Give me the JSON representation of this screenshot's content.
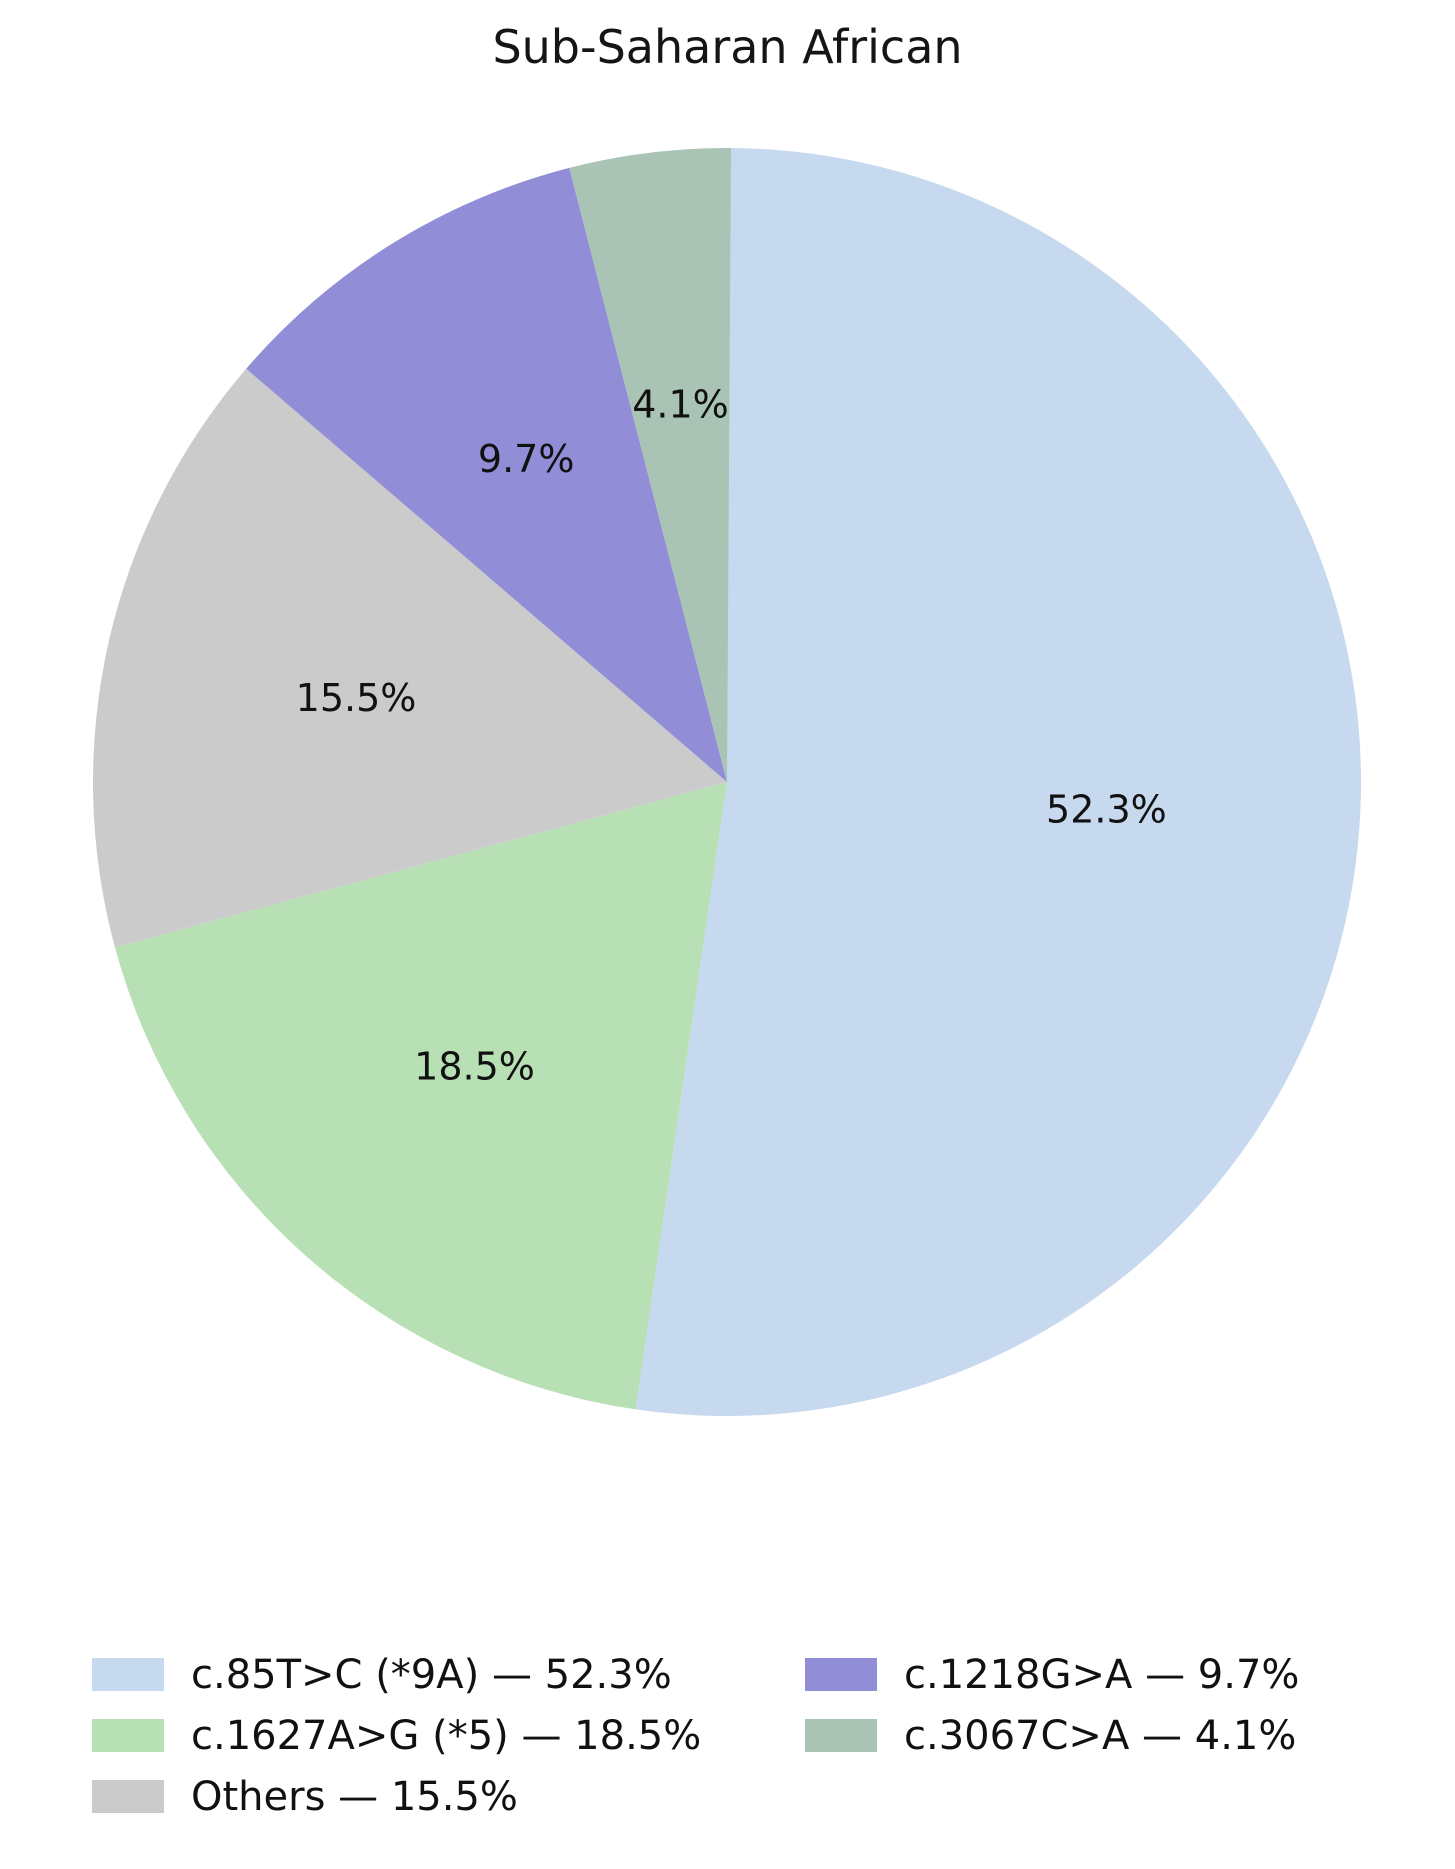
{
  "chart_data": {
    "type": "pie",
    "title": "Sub-Saharan African",
    "start_angle_deg": 90,
    "direction": "clockwise",
    "legend_position": "bottom",
    "slices": [
      {
        "label": "c.85T>C (*9A)",
        "value": 52.3,
        "pct_label": "52.3%",
        "color": "#c6d9ef"
      },
      {
        "label": "c.1627A>G (*5)",
        "value": 18.5,
        "pct_label": "18.5%",
        "color": "#b8e0b5"
      },
      {
        "label": "Others",
        "value": 15.5,
        "pct_label": "15.5%",
        "color": "#cbcbcb"
      },
      {
        "label": "c.1218G>A",
        "value": 9.7,
        "pct_label": "9.7%",
        "color": "#918dd6"
      },
      {
        "label": "c.3067C>A",
        "value": 4.1,
        "pct_label": "4.1%",
        "color": "#a9c3b5"
      }
    ],
    "legend_entries": [
      "c.85T>C (*9A) — 52.3%",
      "c.1627A>G (*5) — 18.5%",
      "Others — 15.5%",
      "c.1218G>A — 9.7%",
      "c.3067C>A — 4.1%"
    ]
  }
}
